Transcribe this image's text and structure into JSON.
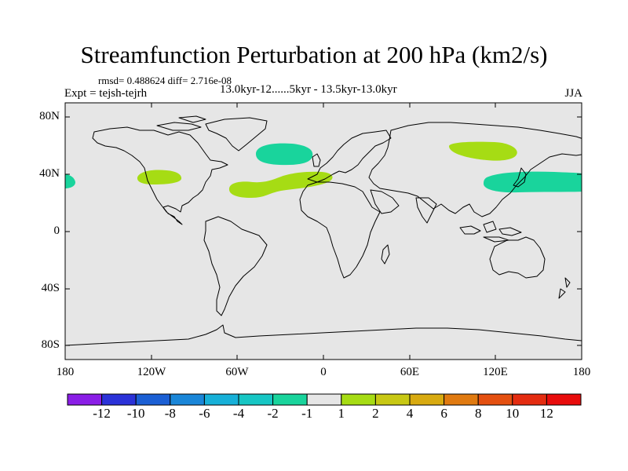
{
  "title": "Streamfunction Perturbation at 200 hPa (km2/s)",
  "stats": "rmsd= 0.488624 diff= 2.716e-08",
  "period": "13.0kyr-12......5kyr - 13.5kyr-13.0kyr",
  "experiment": "Expt = tejsh-tejrh",
  "season": "JJA",
  "lat_labels": [
    "80N",
    "40N",
    "0",
    "40S",
    "80S"
  ],
  "lon_labels": [
    "180",
    "120W",
    "60W",
    "0",
    "60E",
    "120E",
    "180"
  ],
  "colorbar": {
    "labels": [
      "-12",
      "-10",
      "-8",
      "-6",
      "-4",
      "-2",
      "-1",
      "1",
      "2",
      "4",
      "6",
      "8",
      "10",
      "12"
    ],
    "colors": [
      "#8a1ee6",
      "#2b32d8",
      "#1b5fd4",
      "#1a86d8",
      "#17b0d8",
      "#17c6c4",
      "#19d49c",
      "#e6e6e6",
      "#a6dc14",
      "#c8c814",
      "#d8aa10",
      "#e07a10",
      "#e45010",
      "#e42c10",
      "#e80c0c"
    ]
  },
  "anomalies": [
    {
      "name": "north-atlantic",
      "level": "-2 to -1"
    },
    {
      "name": "east-asia-north",
      "level": "1 to 2"
    },
    {
      "name": "north-pacific-east",
      "level": "-2 to -1"
    },
    {
      "name": "north-pacific-west",
      "level": "-2 to -1"
    },
    {
      "name": "north-america-west",
      "level": "1 to 2"
    },
    {
      "name": "central-atlantic",
      "level": "1 to 2"
    }
  ],
  "colors": {
    "map_background": "#e6e6e6",
    "negative_anomaly": "#19d49c",
    "positive_anomaly": "#a6dc14",
    "coastline": "#000000"
  }
}
